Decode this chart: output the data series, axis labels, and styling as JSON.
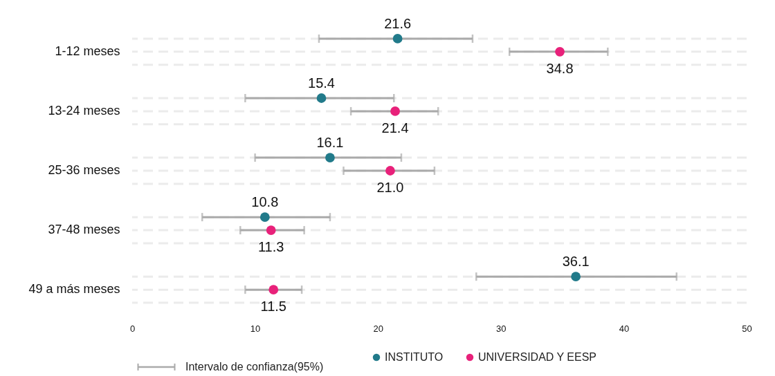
{
  "chart_data": {
    "type": "scatter",
    "orientation": "horizontal",
    "categories": [
      "1-12 meses",
      "13-24 meses",
      "25-36 meses",
      "37-48 meses",
      "49 a más meses"
    ],
    "series": [
      {
        "name": "INSTITUTO",
        "color": "#217a8a",
        "values": [
          21.6,
          15.4,
          16.1,
          10.8,
          36.1
        ],
        "errors": [
          [
            15.2,
            27.7
          ],
          [
            9.2,
            21.3
          ],
          [
            10.0,
            21.9
          ],
          [
            5.7,
            16.1
          ],
          [
            28.0,
            44.3
          ]
        ],
        "value_labels": [
          "21.6",
          "15.4",
          "16.1",
          "10.8",
          "36.1"
        ]
      },
      {
        "name": "UNIVERSIDAD Y EESP",
        "color": "#e8217a",
        "values": [
          34.8,
          21.4,
          21.0,
          11.3,
          11.5
        ],
        "errors": [
          [
            30.7,
            38.7
          ],
          [
            17.8,
            24.9
          ],
          [
            17.2,
            24.6
          ],
          [
            8.8,
            14.0
          ],
          [
            9.2,
            13.8
          ]
        ],
        "value_labels": [
          "34.8",
          "21.4",
          "21.0",
          "11.3",
          "11.5"
        ]
      }
    ],
    "xlim": [
      0,
      50
    ],
    "xticks": [
      0,
      10,
      20,
      30,
      40,
      50
    ],
    "grid": "y",
    "legend": "bottom",
    "marker": "circle",
    "annotations": [
      "Intervalo de confianza(95%)"
    ]
  }
}
